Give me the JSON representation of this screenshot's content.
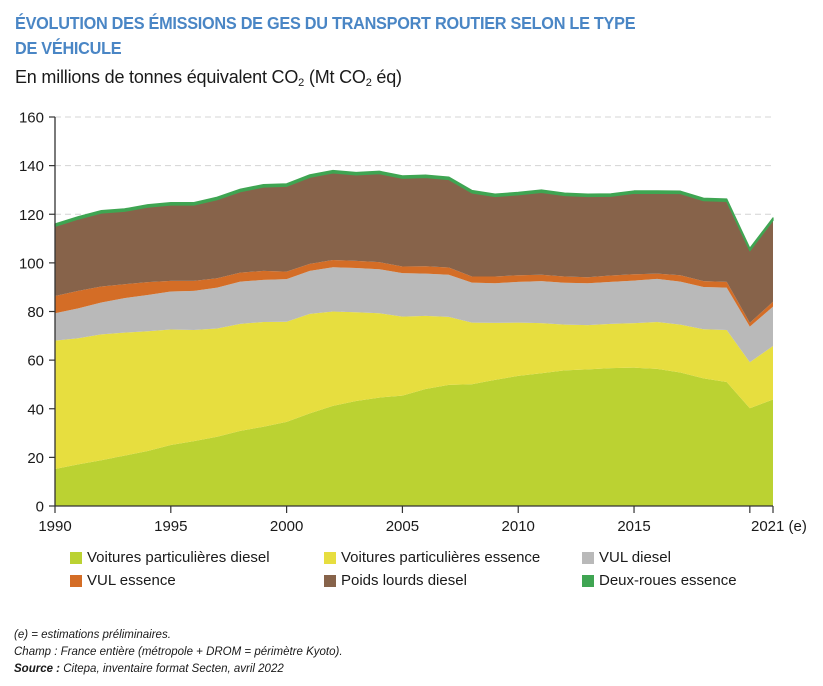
{
  "title": {
    "line1": "ÉVOLUTION DES ÉMISSIONS DE GES DU TRANSPORT ROUTIER SELON LE TYPE",
    "line2": "DE VÉHICULE"
  },
  "subtitle": {
    "part1": "En millions de tonnes équivalent CO",
    "sub1": "2",
    "part2": " (Mt CO",
    "sub2": "2",
    "part3": " éq)"
  },
  "notes": {
    "estimation": "(e) = estimations préliminaires.",
    "champ": "Champ : France entière (métropole + DROM = périmètre Kyoto).",
    "source_label": "Source :",
    "source_text": " Citepa, inventaire format Secten, avril 2022"
  },
  "colors": {
    "title": "#4a86c5",
    "vp_diesel": "#bbd232",
    "vp_essence": "#e7de3f",
    "vul_diesel": "#b9b9b9",
    "vul_essence": "#d46d26",
    "poids_lourds": "#87634a",
    "deux_roues": "#3fa552"
  },
  "chart_data": {
    "type": "area",
    "stacked": true,
    "title": "ÉVOLUTION DES ÉMISSIONS DE GES DU TRANSPORT ROUTIER SELON LE TYPE DE VÉHICULE",
    "ylabel": "En millions de tonnes équivalent CO2 (Mt CO2 éq)",
    "xlabel": "",
    "ylim": [
      0,
      160
    ],
    "yticks": [
      "0",
      "20",
      "40",
      "60",
      "80",
      "100",
      "120",
      "140",
      "160"
    ],
    "ytick_values": [
      0,
      20,
      40,
      60,
      80,
      100,
      120,
      140,
      160
    ],
    "xticks": [
      "1990",
      "1995",
      "2000",
      "2005",
      "2010",
      "2015",
      "2021 (e)"
    ],
    "xtick_values": [
      1990,
      1995,
      2000,
      2005,
      2010,
      2015,
      2021
    ],
    "minor_xtick_values": [
      2020
    ],
    "grid": "horizontal dashed",
    "legend_position": "bottom",
    "x": [
      1990,
      1991,
      1992,
      1993,
      1994,
      1995,
      1996,
      1997,
      1998,
      1999,
      2000,
      2001,
      2002,
      2003,
      2004,
      2005,
      2006,
      2007,
      2008,
      2009,
      2010,
      2011,
      2012,
      2013,
      2014,
      2015,
      2016,
      2017,
      2018,
      2019,
      2020,
      2021
    ],
    "series": [
      {
        "name": "Voitures particulières diesel",
        "color_key": "vp_diesel",
        "values": [
          15.2,
          17.1,
          18.8,
          20.7,
          22.6,
          25.1,
          26.7,
          28.5,
          30.9,
          32.6,
          34.6,
          38.1,
          41.2,
          43.2,
          44.6,
          45.4,
          48.1,
          49.8,
          50.1,
          51.9,
          53.5,
          54.6,
          55.8,
          56.2,
          56.7,
          56.9,
          56.4,
          54.9,
          52.5,
          51.0,
          40.2,
          43.8
        ]
      },
      {
        "name": "Voitures particulières essence",
        "color_key": "vp_essence",
        "values": [
          52.8,
          51.9,
          51.8,
          50.6,
          49.3,
          47.5,
          45.7,
          44.5,
          44.0,
          43.1,
          41.2,
          40.9,
          38.8,
          36.5,
          34.7,
          32.5,
          30.1,
          28.0,
          25.3,
          23.4,
          21.9,
          20.6,
          18.8,
          18.2,
          18.2,
          18.3,
          19.3,
          19.7,
          20.2,
          21.4,
          18.9,
          22.0
        ]
      },
      {
        "name": "VUL diesel",
        "color_key": "vul_diesel",
        "values": [
          11.3,
          12.3,
          13.1,
          14.2,
          14.9,
          15.6,
          16.1,
          16.8,
          17.4,
          17.3,
          17.5,
          17.7,
          18.2,
          18.2,
          18.1,
          17.9,
          17.4,
          17.3,
          16.5,
          16.3,
          16.8,
          17.3,
          17.2,
          17.2,
          17.3,
          17.5,
          17.7,
          17.7,
          17.4,
          17.4,
          14.7,
          16.2
        ]
      },
      {
        "name": "VUL essence",
        "color_key": "vul_essence",
        "values": [
          7.1,
          7.2,
          6.6,
          5.7,
          5.3,
          4.4,
          4.1,
          3.9,
          3.7,
          3.7,
          3.1,
          2.9,
          3.0,
          2.9,
          2.9,
          2.7,
          3.0,
          3.0,
          2.5,
          2.8,
          2.7,
          2.6,
          2.6,
          2.5,
          2.6,
          2.6,
          2.2,
          2.6,
          2.4,
          2.4,
          1.5,
          2.0
        ]
      },
      {
        "name": "Poids lourds diesel",
        "color_key": "poids_lourds",
        "values": [
          28.6,
          29.5,
          30.2,
          30.0,
          30.8,
          31.2,
          31.2,
          32.3,
          33.3,
          34.5,
          35.1,
          35.6,
          35.8,
          35.4,
          36.4,
          36.3,
          36.5,
          36.2,
          34.4,
          32.9,
          33.1,
          33.9,
          33.3,
          33.2,
          32.6,
          33.3,
          33.0,
          33.6,
          33.1,
          33.1,
          29.7,
          33.5
        ]
      },
      {
        "name": "Deux-roues essence",
        "color_key": "deux_roues",
        "values": [
          1.0,
          1.0,
          1.0,
          1.0,
          1.0,
          1.0,
          1.0,
          1.0,
          1.0,
          1.0,
          1.0,
          1.0,
          1.0,
          1.0,
          1.0,
          1.0,
          1.0,
          1.0,
          1.0,
          1.0,
          1.0,
          1.0,
          1.0,
          1.0,
          1.0,
          1.0,
          1.0,
          1.0,
          1.0,
          1.0,
          1.0,
          1.0
        ]
      }
    ],
    "legend": [
      "Voitures particulières diesel",
      "Voitures particulières essence",
      "VUL diesel",
      "VUL essence",
      "Poids lourds diesel",
      "Deux-roues essence"
    ]
  }
}
